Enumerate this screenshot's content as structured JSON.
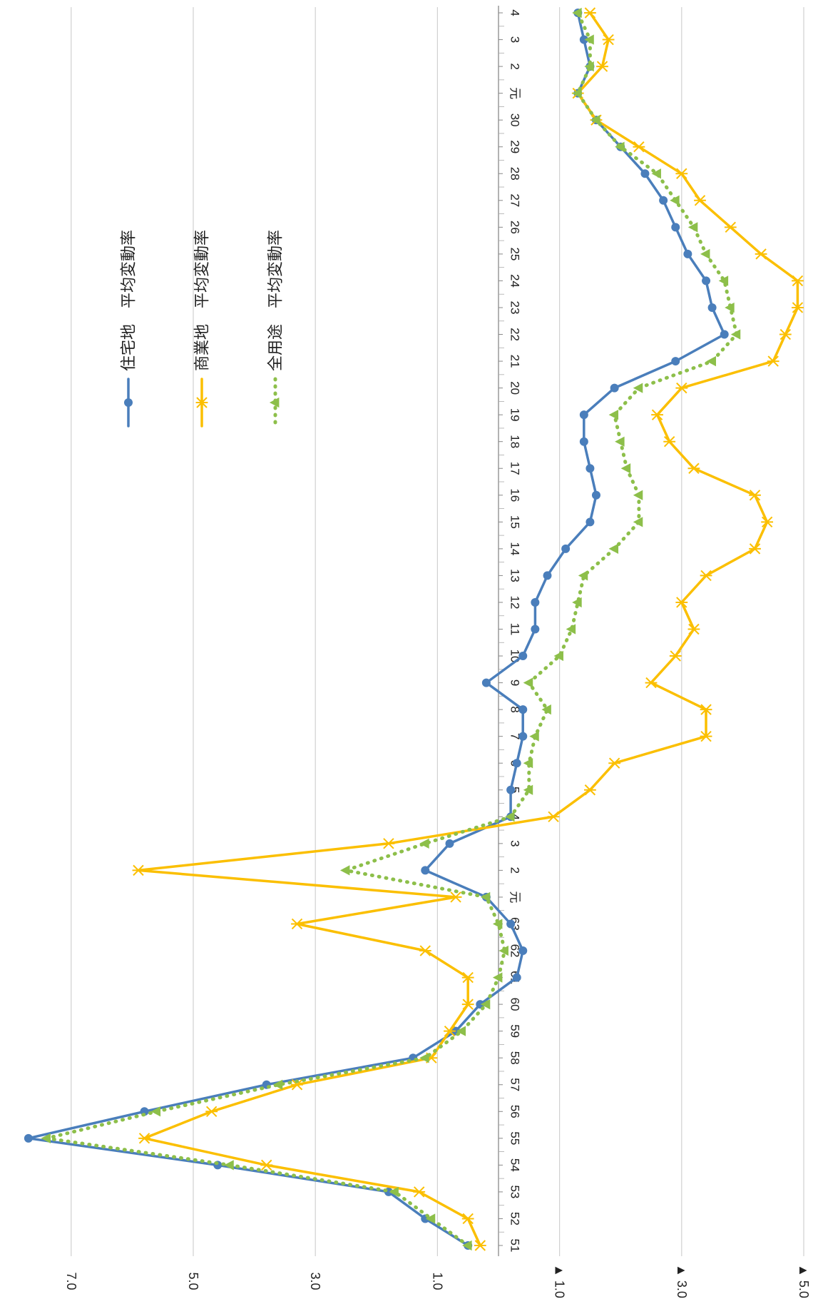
{
  "chart_data": {
    "type": "line",
    "title": "",
    "xlabel": "",
    "ylabel": "",
    "orientation": "rotated-90-clockwise",
    "categories": [
      "51",
      "52",
      "53",
      "54",
      "55",
      "56",
      "57",
      "58",
      "59",
      "60",
      "61",
      "62",
      "63",
      "元",
      "2",
      "3",
      "4",
      "5",
      "6",
      "7",
      "8",
      "9",
      "10",
      "11",
      "12",
      "13",
      "14",
      "15",
      "16",
      "17",
      "18",
      "19",
      "20",
      "21",
      "22",
      "23",
      "24",
      "25",
      "26",
      "27",
      "28",
      "29",
      "30",
      "元",
      "2",
      "3",
      "4"
    ],
    "ylim": [
      -5.0,
      8.0
    ],
    "yticks": [
      -5.0,
      -3.0,
      -1.0,
      1.0,
      3.0,
      5.0,
      7.0
    ],
    "ytick_labels": [
      "▲ 5.0",
      "▲ 3.0",
      "▲ 1.0",
      "1.0",
      "3.0",
      "5.0",
      "7.0"
    ],
    "grid": true,
    "legend_position": "upper-right",
    "series": [
      {
        "name": "住宅地　平均変動率",
        "color": "#4a7ebb",
        "marker": "circle",
        "dash": "solid",
        "values": [
          0.5,
          1.2,
          1.8,
          4.6,
          7.7,
          5.8,
          3.8,
          1.4,
          0.7,
          0.3,
          -0.3,
          -0.4,
          -0.2,
          0.2,
          1.2,
          0.8,
          -0.2,
          -0.2,
          -0.3,
          -0.4,
          -0.4,
          0.2,
          -0.4,
          -0.6,
          -0.6,
          -0.8,
          -1.1,
          -1.5,
          -1.6,
          -1.5,
          -1.4,
          -1.4,
          -1.9,
          -2.9,
          -3.7,
          -3.5,
          -3.4,
          -3.1,
          -2.9,
          -2.7,
          -2.4,
          -2.0,
          -1.6,
          -1.3,
          -1.5,
          -1.4,
          -1.3
        ]
      },
      {
        "name": "商業地　平均変動率",
        "color": "#fbbf00",
        "marker": "star",
        "dash": "solid",
        "values": [
          0.3,
          0.5,
          1.3,
          3.8,
          5.8,
          4.7,
          3.3,
          1.1,
          0.8,
          0.5,
          0.5,
          1.2,
          3.3,
          0.7,
          5.9,
          1.8,
          -0.9,
          -1.5,
          -1.9,
          -3.4,
          -3.4,
          -2.5,
          -2.9,
          -3.2,
          -3.0,
          -3.4,
          -4.2,
          -4.4,
          -4.2,
          -3.2,
          -2.8,
          -2.6,
          -3.0,
          -4.5,
          -4.7,
          -4.9,
          -4.9,
          -4.3,
          -3.8,
          -3.3,
          -3.0,
          -2.3,
          -1.6,
          -1.3,
          -1.7,
          -1.8,
          -1.5
        ]
      },
      {
        "name": "全用途　平均変動率",
        "color": "#8dbf4a",
        "marker": "triangle",
        "dash": "dotted",
        "values": [
          0.5,
          1.1,
          1.7,
          4.4,
          7.4,
          5.6,
          3.6,
          1.2,
          0.6,
          0.2,
          0.0,
          -0.1,
          0.0,
          0.2,
          2.5,
          1.2,
          -0.2,
          -0.5,
          -0.5,
          -0.6,
          -0.8,
          -0.5,
          -1.0,
          -1.2,
          -1.3,
          -1.4,
          -1.9,
          -2.3,
          -2.3,
          -2.1,
          -2.0,
          -1.9,
          -2.3,
          -3.5,
          -3.9,
          -3.8,
          -3.7,
          -3.4,
          -3.2,
          -2.9,
          -2.6,
          -2.0,
          -1.6,
          -1.3,
          -1.5,
          -1.5,
          -1.3
        ]
      }
    ]
  }
}
